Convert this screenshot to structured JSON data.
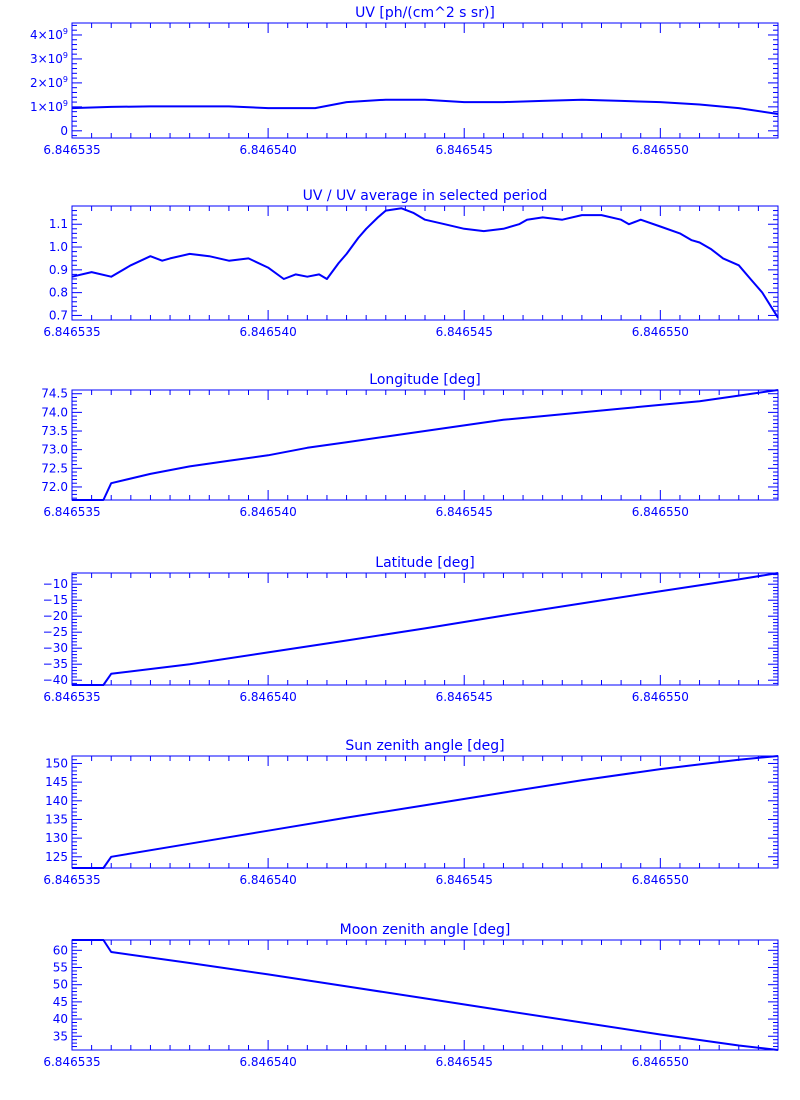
{
  "colors": {
    "foreground": "#0000ff",
    "background": "#ffffff"
  },
  "chart_data": [
    {
      "type": "line",
      "title": "UV [ph/(cm^2 s sr)]",
      "xlabel": "",
      "ylabel": "",
      "xlim": [
        6.846535,
        6.846553
      ],
      "ylim": [
        -300000000.0,
        4500000000.0
      ],
      "grid": false,
      "xticks": [
        6.846535,
        6.84654,
        6.846545,
        6.84655
      ],
      "xtick_labels": [
        "6.846535",
        "6.846540",
        "6.846545",
        "6.846550"
      ],
      "yticks": [
        0,
        1000000000.0,
        2000000000.0,
        3000000000.0,
        4000000000.0
      ],
      "ytick_labels": [
        {
          "mantissa": "0",
          "exp": ""
        },
        {
          "mantissa": "1×10",
          "exp": "9"
        },
        {
          "mantissa": "2×10",
          "exp": "9"
        },
        {
          "mantissa": "3×10",
          "exp": "9"
        },
        {
          "mantissa": "4×10",
          "exp": "9"
        }
      ],
      "series": [
        {
          "x": [
            6.846535,
            6.846536,
            6.846537,
            6.846538,
            6.846539,
            6.84654,
            6.8465412,
            6.846542,
            6.846543,
            6.846544,
            6.846545,
            6.846546,
            6.846547,
            6.846548,
            6.846549,
            6.84655,
            6.846551,
            6.846552,
            6.846553
          ],
          "values": [
            950000000.0,
            1000000000.0,
            1020000000.0,
            1020000000.0,
            1020000000.0,
            950000000.0,
            950000000.0,
            1200000000.0,
            1300000000.0,
            1300000000.0,
            1200000000.0,
            1200000000.0,
            1250000000.0,
            1300000000.0,
            1250000000.0,
            1200000000.0,
            1100000000.0,
            950000000.0,
            700000000.0
          ]
        }
      ]
    },
    {
      "type": "line",
      "title": "UV / UV average in selected period",
      "xlabel": "",
      "ylabel": "",
      "xlim": [
        6.846535,
        6.846553
      ],
      "ylim": [
        0.68,
        1.18
      ],
      "grid": false,
      "xticks": [
        6.846535,
        6.84654,
        6.846545,
        6.84655
      ],
      "xtick_labels": [
        "6.846535",
        "6.846540",
        "6.846545",
        "6.846550"
      ],
      "yticks": [
        0.7,
        0.8,
        0.9,
        1.0,
        1.1
      ],
      "ytick_labels": [
        {
          "mantissa": "0.7",
          "exp": ""
        },
        {
          "mantissa": "0.8",
          "exp": ""
        },
        {
          "mantissa": "0.9",
          "exp": ""
        },
        {
          "mantissa": "1.0",
          "exp": ""
        },
        {
          "mantissa": "1.1",
          "exp": ""
        }
      ],
      "series": [
        {
          "x": [
            6.846535,
            6.8465355,
            6.846536,
            6.8465365,
            6.846537,
            6.8465373,
            6.8465375,
            6.846538,
            6.8465385,
            6.846539,
            6.8465395,
            6.84654,
            6.8465404,
            6.8465407,
            6.846541,
            6.8465413,
            6.8465415,
            6.8465418,
            6.846542,
            6.8465423,
            6.8465425,
            6.8465428,
            6.846543,
            6.8465434,
            6.8465437,
            6.846544,
            6.8465445,
            6.846545,
            6.8465455,
            6.846546,
            6.8465464,
            6.8465466,
            6.846547,
            6.8465475,
            6.846548,
            6.8465485,
            6.846549,
            6.8465492,
            6.8465495,
            6.84655,
            6.8465505,
            6.8465508,
            6.846551,
            6.8465513,
            6.8465516,
            6.846552,
            6.8465523,
            6.8465526,
            6.846553
          ],
          "values": [
            0.87,
            0.89,
            0.87,
            0.92,
            0.96,
            0.94,
            0.95,
            0.97,
            0.96,
            0.94,
            0.95,
            0.91,
            0.86,
            0.88,
            0.87,
            0.88,
            0.86,
            0.93,
            0.97,
            1.04,
            1.08,
            1.13,
            1.16,
            1.17,
            1.15,
            1.12,
            1.1,
            1.08,
            1.07,
            1.08,
            1.1,
            1.12,
            1.13,
            1.12,
            1.14,
            1.14,
            1.12,
            1.1,
            1.12,
            1.09,
            1.06,
            1.03,
            1.02,
            0.99,
            0.95,
            0.92,
            0.86,
            0.8,
            0.69
          ]
        }
      ]
    },
    {
      "type": "line",
      "title": "Longitude [deg]",
      "xlabel": "",
      "ylabel": "",
      "xlim": [
        6.846535,
        6.846553
      ],
      "ylim": [
        71.65,
        74.6
      ],
      "grid": false,
      "xticks": [
        6.846535,
        6.84654,
        6.846545,
        6.84655
      ],
      "xtick_labels": [
        "6.846535",
        "6.846540",
        "6.846545",
        "6.846550"
      ],
      "yticks": [
        72.0,
        72.5,
        73.0,
        73.5,
        74.0,
        74.5
      ],
      "ytick_labels": [
        {
          "mantissa": "72.0",
          "exp": ""
        },
        {
          "mantissa": "72.5",
          "exp": ""
        },
        {
          "mantissa": "73.0",
          "exp": ""
        },
        {
          "mantissa": "73.5",
          "exp": ""
        },
        {
          "mantissa": "74.0",
          "exp": ""
        },
        {
          "mantissa": "74.5",
          "exp": ""
        }
      ],
      "series": [
        {
          "x": [
            6.846535,
            6.8465358,
            6.846536,
            6.846537,
            6.846538,
            6.846539,
            6.84654,
            6.846541,
            6.846542,
            6.846543,
            6.846544,
            6.846545,
            6.846546,
            6.846547,
            6.846548,
            6.846549,
            6.84655,
            6.846551,
            6.846552,
            6.846553
          ],
          "values": [
            71.65,
            71.65,
            72.1,
            72.35,
            72.55,
            72.7,
            72.85,
            73.05,
            73.2,
            73.35,
            73.5,
            73.65,
            73.8,
            73.9,
            74.0,
            74.1,
            74.2,
            74.3,
            74.45,
            74.6
          ]
        }
      ]
    },
    {
      "type": "line",
      "title": "Latitude [deg]",
      "xlabel": "",
      "ylabel": "",
      "xlim": [
        6.846535,
        6.846553
      ],
      "ylim": [
        -41.5,
        -6.5
      ],
      "grid": false,
      "xticks": [
        6.846535,
        6.84654,
        6.846545,
        6.84655
      ],
      "xtick_labels": [
        "6.846535",
        "6.846540",
        "6.846545",
        "6.846550"
      ],
      "yticks": [
        -40,
        -35,
        -30,
        -25,
        -20,
        -15,
        -10
      ],
      "ytick_labels": [
        {
          "mantissa": "−40",
          "exp": ""
        },
        {
          "mantissa": "−35",
          "exp": ""
        },
        {
          "mantissa": "−30",
          "exp": ""
        },
        {
          "mantissa": "−25",
          "exp": ""
        },
        {
          "mantissa": "−20",
          "exp": ""
        },
        {
          "mantissa": "−15",
          "exp": ""
        },
        {
          "mantissa": "−10",
          "exp": ""
        }
      ],
      "series": [
        {
          "x": [
            6.846535,
            6.8465358,
            6.846536,
            6.846538,
            6.84654,
            6.846542,
            6.846544,
            6.846546,
            6.846548,
            6.84655,
            6.846552,
            6.846553
          ],
          "values": [
            -41.5,
            -41.5,
            -38,
            -35,
            -31.3,
            -27.6,
            -23.8,
            -19.8,
            -16.0,
            -12.2,
            -8.5,
            -6.5
          ]
        }
      ]
    },
    {
      "type": "line",
      "title": "Sun zenith angle [deg]",
      "xlabel": "",
      "ylabel": "",
      "xlim": [
        6.846535,
        6.846553
      ],
      "ylim": [
        122,
        152
      ],
      "grid": false,
      "xticks": [
        6.846535,
        6.84654,
        6.846545,
        6.84655
      ],
      "xtick_labels": [
        "6.846535",
        "6.846540",
        "6.846545",
        "6.846550"
      ],
      "yticks": [
        125,
        130,
        135,
        140,
        145,
        150
      ],
      "ytick_labels": [
        {
          "mantissa": "125",
          "exp": ""
        },
        {
          "mantissa": "130",
          "exp": ""
        },
        {
          "mantissa": "135",
          "exp": ""
        },
        {
          "mantissa": "140",
          "exp": ""
        },
        {
          "mantissa": "145",
          "exp": ""
        },
        {
          "mantissa": "150",
          "exp": ""
        }
      ],
      "series": [
        {
          "x": [
            6.846535,
            6.8465358,
            6.846536,
            6.846538,
            6.84654,
            6.846542,
            6.846544,
            6.846546,
            6.846548,
            6.84655,
            6.846552,
            6.846553
          ],
          "values": [
            122,
            122,
            125,
            128.5,
            132,
            135.5,
            138.8,
            142.2,
            145.5,
            148.5,
            151,
            152
          ]
        }
      ]
    },
    {
      "type": "line",
      "title": "Moon zenith angle [deg]",
      "xlabel": "",
      "ylabel": "",
      "xlim": [
        6.846535,
        6.846553
      ],
      "ylim": [
        31,
        63
      ],
      "grid": false,
      "xticks": [
        6.846535,
        6.84654,
        6.846545,
        6.84655
      ],
      "xtick_labels": [
        "6.846535",
        "6.846540",
        "6.846545",
        "6.846550"
      ],
      "yticks": [
        35,
        40,
        45,
        50,
        55,
        60
      ],
      "ytick_labels": [
        {
          "mantissa": "35",
          "exp": ""
        },
        {
          "mantissa": "40",
          "exp": ""
        },
        {
          "mantissa": "45",
          "exp": ""
        },
        {
          "mantissa": "50",
          "exp": ""
        },
        {
          "mantissa": "55",
          "exp": ""
        },
        {
          "mantissa": "60",
          "exp": ""
        }
      ],
      "series": [
        {
          "x": [
            6.846535,
            6.8465358,
            6.846536,
            6.846538,
            6.84654,
            6.846542,
            6.846544,
            6.846546,
            6.846548,
            6.84655,
            6.846552,
            6.846553
          ],
          "values": [
            63,
            63,
            59.5,
            56.3,
            53,
            49.5,
            46,
            42.5,
            39,
            35.5,
            32.3,
            31
          ]
        }
      ]
    }
  ]
}
